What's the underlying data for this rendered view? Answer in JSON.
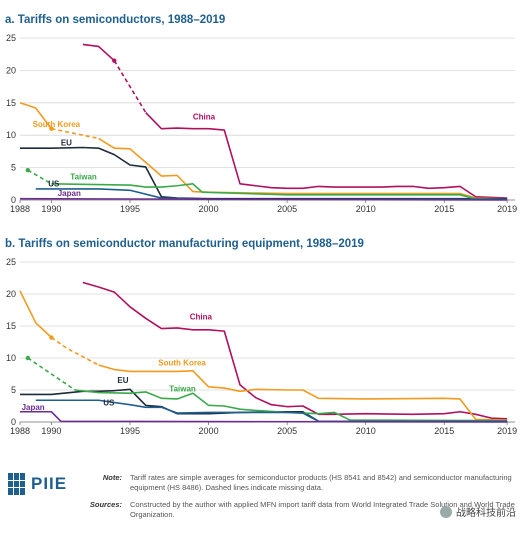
{
  "chart_data": [
    {
      "type": "line",
      "title": "a. Tariffs on semiconductors, 1988–2019",
      "xlim": [
        1988,
        2019.5
      ],
      "ylim": [
        0,
        25
      ],
      "x_ticks": [
        1988,
        1990,
        1995,
        2000,
        2005,
        2010,
        2015,
        2019
      ],
      "y_ticks": [
        0,
        5,
        10,
        15,
        20,
        25
      ],
      "grid": "horizontal",
      "series": [
        {
          "name": "China",
          "color": "#b0105e",
          "solid": [
            [
              [
                1992,
                24
              ],
              [
                1993,
                23.7
              ],
              [
                1994,
                21.5
              ]
            ],
            [
              [
                1996,
                13.5
              ],
              [
                1997,
                11
              ],
              [
                1998,
                11.1
              ],
              [
                1999,
                11
              ],
              [
                2000,
                11
              ],
              [
                2001,
                10.8
              ],
              [
                2002,
                2.5
              ],
              [
                2003,
                2.2
              ],
              [
                2004,
                1.9
              ],
              [
                2005,
                1.8
              ],
              [
                2006,
                1.8
              ],
              [
                2007,
                2.1
              ],
              [
                2008,
                2.0
              ],
              [
                2009,
                2.0
              ],
              [
                2010,
                2.0
              ],
              [
                2011,
                2.0
              ],
              [
                2012,
                2.1
              ],
              [
                2013,
                2.1
              ],
              [
                2014,
                1.8
              ],
              [
                2015,
                1.9
              ],
              [
                2016,
                2.1
              ],
              [
                2017,
                0.5
              ],
              [
                2018,
                0.4
              ],
              [
                2019,
                0.3
              ]
            ]
          ],
          "dashed": [
            [
              [
                1994,
                21.5
              ],
              [
                1996,
                13.5
              ]
            ]
          ],
          "label_at": [
            1999,
            12.4
          ]
        },
        {
          "name": "South Korea",
          "color": "#f39a1e",
          "solid": [
            [
              [
                1988,
                15
              ],
              [
                1989,
                14.2
              ],
              [
                1990,
                11
              ]
            ],
            [
              [
                1993,
                9.5
              ],
              [
                1994,
                8
              ],
              [
                1995,
                7.9
              ],
              [
                1996,
                5.8
              ],
              [
                1997,
                3.7
              ],
              [
                1998,
                3.8
              ],
              [
                1999,
                1.3
              ],
              [
                2000,
                1.2
              ],
              [
                2005,
                1.0
              ],
              [
                2010,
                1.0
              ],
              [
                2015,
                1.0
              ],
              [
                2016,
                1.0
              ],
              [
                2017,
                0.3
              ],
              [
                2019,
                0.2
              ]
            ]
          ],
          "dashed": [
            [
              [
                1990,
                11
              ],
              [
                1991,
                10.5
              ],
              [
                1993,
                9.5
              ]
            ]
          ],
          "label_at": [
            1988.8,
            11.3
          ]
        },
        {
          "name": "EU",
          "color": "#1e2b3a",
          "solid": [
            [
              [
                1988,
                8
              ],
              [
                1990,
                8
              ],
              [
                1992,
                8.1
              ],
              [
                1993,
                8.0
              ],
              [
                1994,
                7.0
              ],
              [
                1995,
                5.4
              ],
              [
                1996,
                5.1
              ],
              [
                1997,
                0.5
              ],
              [
                1998,
                0.3
              ],
              [
                2000,
                0.2
              ],
              [
                2019,
                0.2
              ]
            ]
          ],
          "dashed": [],
          "label_at": [
            1990.6,
            8.4
          ]
        },
        {
          "name": "Taiwan",
          "color": "#3aaa4a",
          "solid": [
            [
              [
                1990,
                2.5
              ],
              [
                1995,
                2.3
              ],
              [
                1996,
                2.0
              ],
              [
                1997,
                2.0
              ],
              [
                1998,
                2.2
              ],
              [
                1999,
                2.5
              ],
              [
                1999.6,
                1.2
              ],
              [
                2005,
                0.8
              ],
              [
                2010,
                0.8
              ],
              [
                2015,
                0.8
              ],
              [
                2016,
                0.8
              ],
              [
                2017,
                0.2
              ],
              [
                2019,
                0.1
              ]
            ]
          ],
          "dashed": [
            [
              [
                1988.5,
                4.6
              ],
              [
                1990,
                2.5
              ]
            ]
          ],
          "label_at": [
            1991.2,
            3.2
          ]
        },
        {
          "name": "US",
          "color": "#1f5f8f",
          "solid": [
            [
              [
                1989,
                1.7
              ],
              [
                1993,
                1.7
              ],
              [
                1995,
                1.5
              ],
              [
                1997,
                0.3
              ],
              [
                2000,
                0.1
              ],
              [
                2019,
                0.1
              ]
            ]
          ],
          "dashed": [],
          "label_at": [
            1989.8,
            2.1
          ]
        },
        {
          "name": "Japan",
          "color": "#6b2c91",
          "solid": [
            [
              [
                1988,
                0.2
              ],
              [
                2019,
                0.0
              ]
            ]
          ],
          "dashed": [],
          "label_at": [
            1990.4,
            0.6
          ]
        }
      ]
    },
    {
      "type": "line",
      "title": "b. Tariffs on semiconductor manufacturing equipment, 1988–2019",
      "xlim": [
        1988,
        2019.5
      ],
      "ylim": [
        0,
        25
      ],
      "x_ticks": [
        1988,
        1990,
        1995,
        2000,
        2005,
        2010,
        2015,
        2019
      ],
      "y_ticks": [
        0,
        5,
        10,
        15,
        20,
        25
      ],
      "grid": "horizontal",
      "series": [
        {
          "name": "China",
          "color": "#b0105e",
          "solid": [
            [
              [
                1992,
                21.8
              ],
              [
                1993,
                21.1
              ],
              [
                1994,
                20.3
              ],
              [
                1995,
                18
              ],
              [
                1996,
                16.2
              ],
              [
                1997,
                14.6
              ],
              [
                1998,
                14.7
              ],
              [
                1999,
                14.4
              ],
              [
                2000,
                14.4
              ],
              [
                2001,
                14.2
              ],
              [
                2002,
                5.8
              ],
              [
                2003,
                3.8
              ],
              [
                2004,
                2.7
              ],
              [
                2005,
                2.4
              ],
              [
                2006,
                2.5
              ],
              [
                2007,
                1.2
              ],
              [
                2008,
                1.2
              ],
              [
                2010,
                1.3
              ],
              [
                2013,
                1.2
              ],
              [
                2015,
                1.3
              ],
              [
                2016,
                1.6
              ],
              [
                2017,
                1.2
              ],
              [
                2018,
                0.6
              ],
              [
                2019,
                0.5
              ]
            ]
          ],
          "dashed": [],
          "label_at": [
            1998.8,
            16
          ]
        },
        {
          "name": "South Korea",
          "color": "#f39a1e",
          "solid": [
            [
              [
                1988,
                20.5
              ],
              [
                1989,
                15.5
              ],
              [
                1990,
                13.2
              ]
            ],
            [
              [
                1993,
                8.9
              ],
              [
                1994,
                8.2
              ],
              [
                1995,
                7.9
              ],
              [
                1998,
                7.9
              ],
              [
                1999,
                8.0
              ],
              [
                2000,
                5.5
              ],
              [
                2001,
                5.3
              ],
              [
                2002,
                4.8
              ],
              [
                2003,
                5.1
              ],
              [
                2005,
                5.0
              ],
              [
                2006,
                5.0
              ],
              [
                2007,
                3.7
              ],
              [
                2010,
                3.6
              ],
              [
                2015,
                3.7
              ],
              [
                2016,
                3.6
              ],
              [
                2017,
                0.4
              ],
              [
                2019,
                0.3
              ]
            ]
          ],
          "dashed": [
            [
              [
                1990,
                13.2
              ],
              [
                1991,
                11.5
              ],
              [
                1993,
                8.9
              ]
            ]
          ],
          "label_at": [
            1996.8,
            8.8
          ]
        },
        {
          "name": "EU",
          "color": "#1e2b3a",
          "solid": [
            [
              [
                1988,
                4.3
              ],
              [
                1990,
                4.3
              ],
              [
                1992,
                4.8
              ],
              [
                1993,
                4.8
              ],
              [
                1994,
                4.9
              ],
              [
                1995,
                5.1
              ],
              [
                1996,
                2.6
              ],
              [
                1997,
                2.4
              ],
              [
                1998,
                1.3
              ],
              [
                2000,
                1.3
              ],
              [
                2002,
                1.5
              ],
              [
                2005,
                1.6
              ],
              [
                2006,
                1.6
              ],
              [
                2007,
                0.1
              ],
              [
                2019,
                0.1
              ]
            ]
          ],
          "dashed": [],
          "label_at": [
            1994.2,
            6.1
          ]
        },
        {
          "name": "Taiwan",
          "color": "#3aaa4a",
          "solid": [
            [
              [
                1991.5,
                5.0
              ],
              [
                1993,
                4.6
              ],
              [
                1995,
                4.5
              ],
              [
                1996,
                4.7
              ],
              [
                1997,
                3.7
              ],
              [
                1998,
                3.6
              ],
              [
                1999,
                4.5
              ],
              [
                2000,
                2.6
              ],
              [
                2001,
                2.5
              ],
              [
                2002,
                2.0
              ],
              [
                2003,
                1.8
              ],
              [
                2005,
                1.5
              ],
              [
                2006,
                1.4
              ],
              [
                2007,
                1.3
              ],
              [
                2008,
                1.5
              ],
              [
                2009,
                0.3
              ],
              [
                2019,
                0.2
              ]
            ]
          ],
          "dashed": [
            [
              [
                1988.5,
                10
              ],
              [
                1991.5,
                5.0
              ]
            ]
          ],
          "label_at": [
            1997.5,
            4.8
          ]
        },
        {
          "name": "US",
          "color": "#1f5f8f",
          "solid": [
            [
              [
                1989,
                3.4
              ],
              [
                1993,
                3.4
              ],
              [
                1995,
                2.7
              ],
              [
                1996,
                2.3
              ],
              [
                1997,
                2.3
              ],
              [
                1998,
                1.4
              ],
              [
                2000,
                1.5
              ],
              [
                2005,
                1.5
              ],
              [
                2006,
                1.4
              ],
              [
                2007,
                0.1
              ],
              [
                2019,
                0.1
              ]
            ]
          ],
          "dashed": [],
          "label_at": [
            1993.3,
            2.6
          ]
        },
        {
          "name": "Japan",
          "color": "#6b2c91",
          "solid": [
            [
              [
                1988,
                1.6
              ],
              [
                1990,
                1.6
              ],
              [
                1990.6,
                0.1
              ],
              [
                2019,
                0.0
              ]
            ]
          ],
          "dashed": [],
          "label_at": [
            1988.1,
            1.9
          ]
        }
      ]
    }
  ],
  "notes": {
    "logo": "PIIE",
    "note_label": "Note:",
    "note_text": "Tariff rates are simple averages for semiconductor products (HS 8541 and 8542) and semiconductor manufacturing equipment (HS 8486). Dashed lines indicate missing data.",
    "sources_label": "Sources:",
    "sources_text": "Constructed by the author with applied MFN import tariff data from World Integrated Trade Solution and World Trade Organization.",
    "watermark": "战略科技前沿"
  }
}
